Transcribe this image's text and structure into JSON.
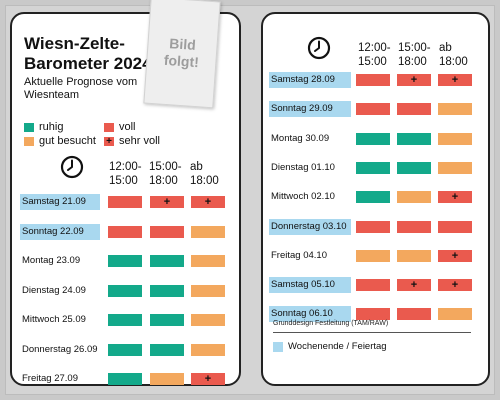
{
  "colors": {
    "ruhig": "#13a98a",
    "gut_besucht": "#f3a85e",
    "voll": "#ea5a4e",
    "weekend": "#a9d8ef"
  },
  "title": "Wiesn-Zelte-\nBarometer 2024",
  "subtitle": "Aktuelle Prognose vom Wiesnteam",
  "photo_placeholder": "Bild\nfolgt!",
  "legend": [
    {
      "label": "ruhig",
      "level": "ruhig"
    },
    {
      "label": "voll",
      "level": "voll"
    },
    {
      "label": "gut besucht",
      "level": "gut_besucht"
    },
    {
      "label": "sehr voll",
      "level": "sehr_voll"
    }
  ],
  "time_slots": [
    "12:00-\n15:00",
    "15:00-\n18:00",
    "ab\n18:00"
  ],
  "sehr_voll_marker": "+",
  "days_left": [
    {
      "label": "Samstag 21.09",
      "weekend": true,
      "slots": [
        "voll",
        "sehr_voll",
        "sehr_voll"
      ]
    },
    {
      "label": "Sonntag 22.09",
      "weekend": true,
      "slots": [
        "voll",
        "voll",
        "gut_besucht"
      ]
    },
    {
      "label": "Montag 23.09",
      "weekend": false,
      "slots": [
        "ruhig",
        "ruhig",
        "gut_besucht"
      ]
    },
    {
      "label": "Dienstag 24.09",
      "weekend": false,
      "slots": [
        "ruhig",
        "ruhig",
        "gut_besucht"
      ]
    },
    {
      "label": "Mittwoch 25.09",
      "weekend": false,
      "slots": [
        "ruhig",
        "ruhig",
        "gut_besucht"
      ]
    },
    {
      "label": "Donnerstag 26.09",
      "weekend": false,
      "slots": [
        "ruhig",
        "ruhig",
        "gut_besucht"
      ]
    },
    {
      "label": "Freitag 27.09",
      "weekend": false,
      "slots": [
        "ruhig",
        "gut_besucht",
        "sehr_voll"
      ]
    }
  ],
  "days_right": [
    {
      "label": "Samstag 28.09",
      "weekend": true,
      "slots": [
        "voll",
        "sehr_voll",
        "sehr_voll"
      ]
    },
    {
      "label": "Sonntag 29.09",
      "weekend": true,
      "slots": [
        "voll",
        "voll",
        "gut_besucht"
      ]
    },
    {
      "label": "Montag 30.09",
      "weekend": false,
      "slots": [
        "ruhig",
        "ruhig",
        "gut_besucht"
      ]
    },
    {
      "label": "Dienstag 01.10",
      "weekend": false,
      "slots": [
        "ruhig",
        "ruhig",
        "gut_besucht"
      ]
    },
    {
      "label": "Mittwoch 02.10",
      "weekend": false,
      "slots": [
        "ruhig",
        "gut_besucht",
        "sehr_voll"
      ]
    },
    {
      "label": "Donnerstag 03.10",
      "weekend": true,
      "slots": [
        "voll",
        "voll",
        "voll"
      ]
    },
    {
      "label": "Freitag 04.10",
      "weekend": false,
      "slots": [
        "gut_besucht",
        "gut_besucht",
        "sehr_voll"
      ]
    },
    {
      "label": "Samstag 05.10",
      "weekend": true,
      "slots": [
        "voll",
        "sehr_voll",
        "sehr_voll"
      ]
    },
    {
      "label": "Sonntag 06.10",
      "weekend": true,
      "slots": [
        "voll",
        "voll",
        "gut_besucht"
      ]
    }
  ],
  "footer_note": "Grunddesign Festleitung (TAM/RAW)",
  "footer_legend": "Wochenende / Feiertag"
}
